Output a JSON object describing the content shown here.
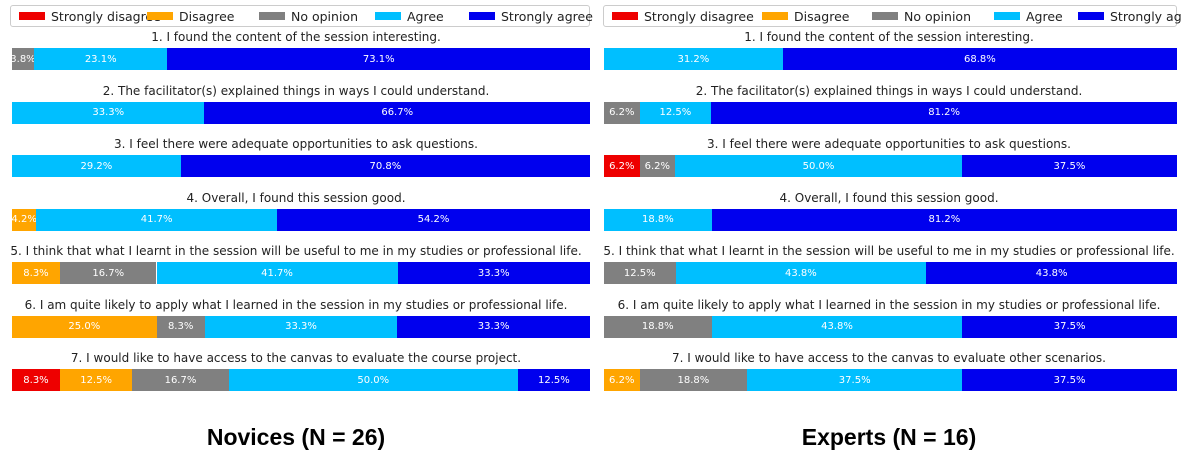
{
  "legend": [
    {
      "label": "Strongly disagree",
      "color": "#ee0000"
    },
    {
      "label": "Disagree",
      "color": "#ffa500"
    },
    {
      "label": "No opinion",
      "color": "#808080"
    },
    {
      "label": "Agree",
      "color": "#00bfff"
    },
    {
      "label": "Strongly agree",
      "color": "#0000ee"
    }
  ],
  "chart_data": [
    {
      "type": "bar",
      "orientation": "horizontal-stacked-100",
      "title": "Novices (N = 26)",
      "categories": [
        "Strongly disagree",
        "Disagree",
        "No opinion",
        "Agree",
        "Strongly agree"
      ],
      "questions": [
        {
          "title": "1. I found the content of the session interesting.",
          "values": [
            0,
            0,
            3.8,
            23.1,
            73.1
          ]
        },
        {
          "title": "2. The facilitator(s) explained things in ways I could understand.",
          "values": [
            0,
            0,
            0,
            33.3,
            66.7
          ]
        },
        {
          "title": "3. I feel there were adequate opportunities to ask questions.",
          "values": [
            0,
            0,
            0,
            29.2,
            70.8
          ]
        },
        {
          "title": "4. Overall, I found this session good.",
          "values": [
            0,
            4.2,
            0,
            41.7,
            54.2
          ]
        },
        {
          "title": "5. I think that what I learnt in the session will be useful to me in my studies or professional life.",
          "values": [
            0,
            8.3,
            16.7,
            41.7,
            33.3
          ]
        },
        {
          "title": "6. I am quite likely to apply what I learned in the session in my studies or professional life.",
          "values": [
            0,
            25.0,
            8.3,
            33.3,
            33.3
          ]
        },
        {
          "title": "7. I would like to have access to the canvas to evaluate the course project.",
          "values": [
            8.3,
            12.5,
            16.7,
            50.0,
            12.5
          ]
        }
      ]
    },
    {
      "type": "bar",
      "orientation": "horizontal-stacked-100",
      "title": "Experts (N = 16)",
      "categories": [
        "Strongly disagree",
        "Disagree",
        "No opinion",
        "Agree",
        "Strongly agree"
      ],
      "questions": [
        {
          "title": "1. I found the content of the session interesting.",
          "values": [
            0,
            0,
            0,
            31.2,
            68.8
          ]
        },
        {
          "title": "2. The facilitator(s) explained things in ways I could understand.",
          "values": [
            0,
            0,
            6.2,
            12.5,
            81.2
          ]
        },
        {
          "title": "3. I feel there were adequate opportunities to ask questions.",
          "values": [
            6.2,
            0,
            6.2,
            50.0,
            37.5
          ]
        },
        {
          "title": "4. Overall, I found this session good.",
          "values": [
            0,
            0,
            0,
            18.8,
            81.2
          ]
        },
        {
          "title": "5. I think that what I learnt in the session will be useful to me in my studies or professional life.",
          "values": [
            0,
            0,
            12.5,
            43.8,
            43.8
          ]
        },
        {
          "title": "6. I am quite likely to apply what I learned in the session in my studies or professional life.",
          "values": [
            0,
            0,
            18.8,
            43.8,
            37.5
          ]
        },
        {
          "title": "7. I would like to have access to the canvas to evaluate other scenarios.",
          "values": [
            0,
            6.2,
            18.8,
            37.5,
            37.5
          ]
        }
      ]
    }
  ]
}
